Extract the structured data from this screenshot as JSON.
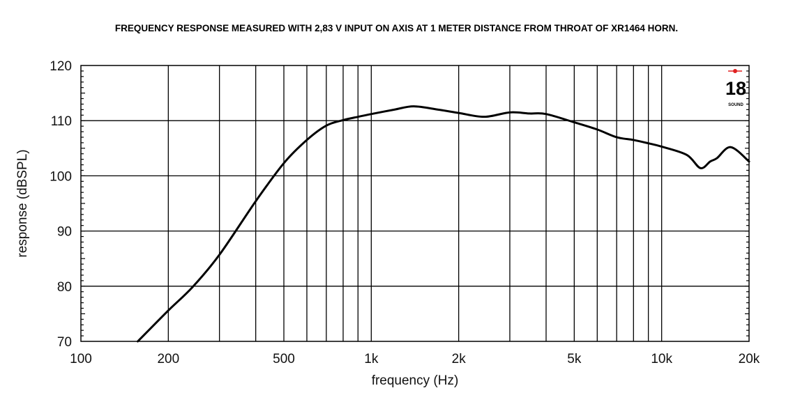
{
  "chart_data": {
    "type": "line",
    "title": "FREQUENCY RESPONSE MEASURED WITH 2,83 V INPUT ON AXIS AT 1 METER DISTANCE FROM THROAT OF XR1464 HORN.",
    "xlabel": "frequency (Hz)",
    "ylabel": "response (dBSPL)",
    "xscale": "log",
    "xlim": [
      100,
      20000
    ],
    "ylim": [
      70,
      120
    ],
    "grid": true,
    "x_ticks": [
      100,
      200,
      500,
      1000,
      2000,
      5000,
      10000,
      20000
    ],
    "x_tick_labels": [
      "100",
      "200",
      "500",
      "1k",
      "2k",
      "5k",
      "10k",
      "20k"
    ],
    "y_ticks": [
      70,
      80,
      90,
      100,
      110,
      120
    ],
    "y_tick_labels": [
      "70",
      "80",
      "90",
      "100",
      "110",
      "120"
    ],
    "series": [
      {
        "color": "#000000",
        "x": [
          157,
          200,
          242,
          300,
          400,
          500,
          600,
          700,
          800,
          900,
          1000,
          1200,
          1400,
          1700,
          2000,
          2450,
          3000,
          3500,
          4000,
          5000,
          6000,
          7000,
          8000,
          9000,
          10000,
          12200,
          13600,
          14700,
          15500,
          17300,
          20000
        ],
        "y": [
          70,
          75.6,
          79.8,
          85.7,
          95.4,
          102.3,
          106.5,
          109.1,
          110.1,
          110.7,
          111.2,
          112.0,
          112.6,
          112.0,
          111.4,
          110.7,
          111.5,
          111.3,
          111.2,
          109.7,
          108.4,
          107.0,
          106.5,
          105.9,
          105.3,
          103.8,
          101.4,
          102.6,
          103.2,
          105.2,
          102.6
        ]
      }
    ]
  },
  "logo": {
    "text": "18",
    "subtext": "SOUND",
    "accent": "#e02020"
  }
}
